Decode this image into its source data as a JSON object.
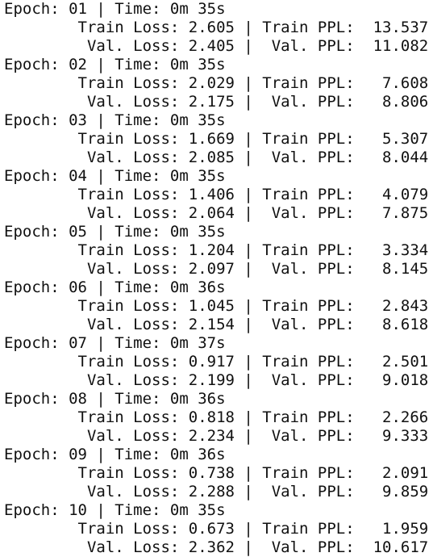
{
  "lines": [
    "Epoch: 01 | Time: 0m 35s",
    "\tTrain Loss: 2.605 | Train PPL:  13.537",
    "\t Val. Loss: 2.405 |  Val. PPL:  11.082",
    "Epoch: 02 | Time: 0m 35s",
    "\tTrain Loss: 2.029 | Train PPL:   7.608",
    "\t Val. Loss: 2.175 |  Val. PPL:   8.806",
    "Epoch: 03 | Time: 0m 35s",
    "\tTrain Loss: 1.669 | Train PPL:   5.307",
    "\t Val. Loss: 2.085 |  Val. PPL:   8.044",
    "Epoch: 04 | Time: 0m 35s",
    "\tTrain Loss: 1.406 | Train PPL:   4.079",
    "\t Val. Loss: 2.064 |  Val. PPL:   7.875",
    "Epoch: 05 | Time: 0m 35s",
    "\tTrain Loss: 1.204 | Train PPL:   3.334",
    "\t Val. Loss: 2.097 |  Val. PPL:   8.145",
    "Epoch: 06 | Time: 0m 36s",
    "\tTrain Loss: 1.045 | Train PPL:   2.843",
    "\t Val. Loss: 2.154 |  Val. PPL:   8.618",
    "Epoch: 07 | Time: 0m 37s",
    "\tTrain Loss: 0.917 | Train PPL:   2.501",
    "\t Val. Loss: 2.199 |  Val. PPL:   9.018",
    "Epoch: 08 | Time: 0m 36s",
    "\tTrain Loss: 0.818 | Train PPL:   2.266",
    "\t Val. Loss: 2.234 |  Val. PPL:   9.333",
    "Epoch: 09 | Time: 0m 36s",
    "\tTrain Loss: 0.738 | Train PPL:   2.091",
    "\t Val. Loss: 2.288 |  Val. PPL:   9.859",
    "Epoch: 10 | Time: 0m 35s",
    "\tTrain Loss: 0.673 | Train PPL:   1.959",
    "\t Val. Loss: 2.362 |  Val. PPL:  10.617"
  ]
}
